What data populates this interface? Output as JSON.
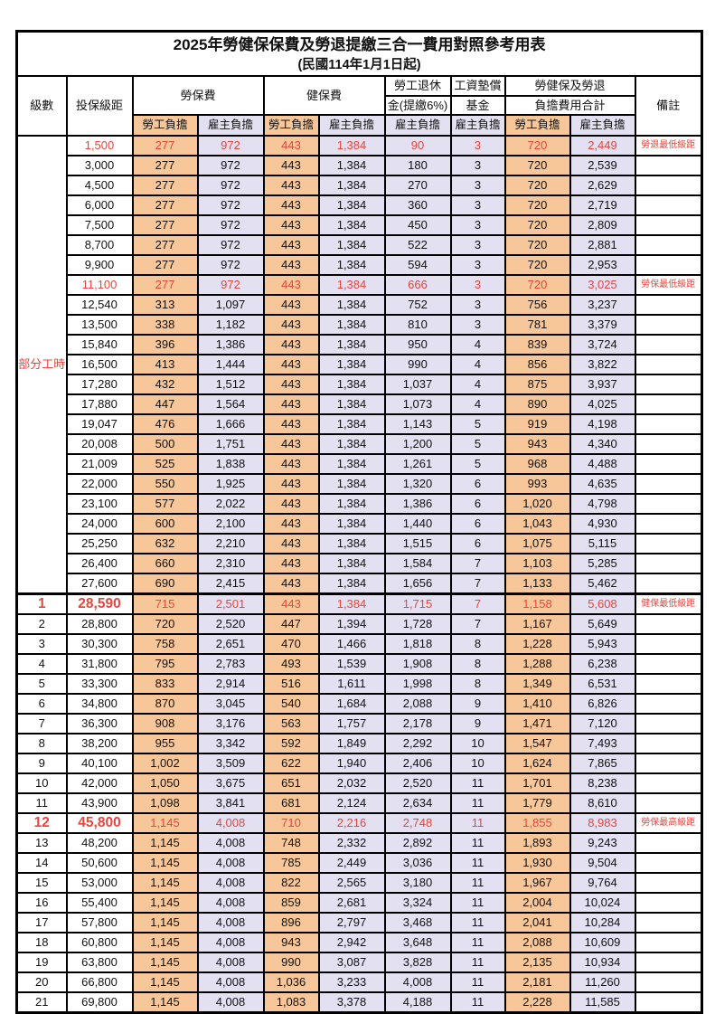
{
  "title": "2025年勞健保保費及勞退提繳三合一費用對照參考用表",
  "subtitle": "(民國114年1月1日起)",
  "columns": {
    "level": "級數",
    "bracket": "投保級距",
    "labor": "勞保費",
    "health": "健保費",
    "pension_line1": "勞工退休",
    "pension_line2": "金(提繳6%)",
    "fund_line1": "工資墊償",
    "fund_line2": "基金",
    "total_line1": "勞健保及勞退",
    "total_line2": "負擔費用合計",
    "remark": "備註",
    "employee": "勞工負擔",
    "employer": "雇主負擔"
  },
  "group_label": "部分工時",
  "colors": {
    "employee_bg": "#f7c79a",
    "employer_bg": "#e2e0f1",
    "highlight_text": "#e8453c",
    "remark_text": "#f26b63",
    "grid": "#000000"
  },
  "rows": [
    {
      "level": "",
      "bracket": "1,500",
      "labor_e": "277",
      "labor_r": "972",
      "health_e": "443",
      "health_r": "1,384",
      "pension_r": "90",
      "fund_r": "3",
      "total_e": "720",
      "total_r": "2,449",
      "remark": "勞退最低級距",
      "red": true,
      "big": false
    },
    {
      "level": "",
      "bracket": "3,000",
      "labor_e": "277",
      "labor_r": "972",
      "health_e": "443",
      "health_r": "1,384",
      "pension_r": "180",
      "fund_r": "3",
      "total_e": "720",
      "total_r": "2,539",
      "remark": "",
      "red": false,
      "big": false
    },
    {
      "level": "",
      "bracket": "4,500",
      "labor_e": "277",
      "labor_r": "972",
      "health_e": "443",
      "health_r": "1,384",
      "pension_r": "270",
      "fund_r": "3",
      "total_e": "720",
      "total_r": "2,629",
      "remark": "",
      "red": false,
      "big": false
    },
    {
      "level": "",
      "bracket": "6,000",
      "labor_e": "277",
      "labor_r": "972",
      "health_e": "443",
      "health_r": "1,384",
      "pension_r": "360",
      "fund_r": "3",
      "total_e": "720",
      "total_r": "2,719",
      "remark": "",
      "red": false,
      "big": false
    },
    {
      "level": "",
      "bracket": "7,500",
      "labor_e": "277",
      "labor_r": "972",
      "health_e": "443",
      "health_r": "1,384",
      "pension_r": "450",
      "fund_r": "3",
      "total_e": "720",
      "total_r": "2,809",
      "remark": "",
      "red": false,
      "big": false
    },
    {
      "level": "",
      "bracket": "8,700",
      "labor_e": "277",
      "labor_r": "972",
      "health_e": "443",
      "health_r": "1,384",
      "pension_r": "522",
      "fund_r": "3",
      "total_e": "720",
      "total_r": "2,881",
      "remark": "",
      "red": false,
      "big": false
    },
    {
      "level": "",
      "bracket": "9,900",
      "labor_e": "277",
      "labor_r": "972",
      "health_e": "443",
      "health_r": "1,384",
      "pension_r": "594",
      "fund_r": "3",
      "total_e": "720",
      "total_r": "2,953",
      "remark": "",
      "red": false,
      "big": false
    },
    {
      "level": "",
      "bracket": "11,100",
      "labor_e": "277",
      "labor_r": "972",
      "health_e": "443",
      "health_r": "1,384",
      "pension_r": "666",
      "fund_r": "3",
      "total_e": "720",
      "total_r": "3,025",
      "remark": "勞保最低級距",
      "red": true,
      "big": false
    },
    {
      "level": "",
      "bracket": "12,540",
      "labor_e": "313",
      "labor_r": "1,097",
      "health_e": "443",
      "health_r": "1,384",
      "pension_r": "752",
      "fund_r": "3",
      "total_e": "756",
      "total_r": "3,237",
      "remark": "",
      "red": false,
      "big": false
    },
    {
      "level": "",
      "bracket": "13,500",
      "labor_e": "338",
      "labor_r": "1,182",
      "health_e": "443",
      "health_r": "1,384",
      "pension_r": "810",
      "fund_r": "3",
      "total_e": "781",
      "total_r": "3,379",
      "remark": "",
      "red": false,
      "big": false
    },
    {
      "level": "",
      "bracket": "15,840",
      "labor_e": "396",
      "labor_r": "1,386",
      "health_e": "443",
      "health_r": "1,384",
      "pension_r": "950",
      "fund_r": "4",
      "total_e": "839",
      "total_r": "3,724",
      "remark": "",
      "red": false,
      "big": false
    },
    {
      "level": "",
      "bracket": "16,500",
      "labor_e": "413",
      "labor_r": "1,444",
      "health_e": "443",
      "health_r": "1,384",
      "pension_r": "990",
      "fund_r": "4",
      "total_e": "856",
      "total_r": "3,822",
      "remark": "",
      "red": false,
      "big": false
    },
    {
      "level": "",
      "bracket": "17,280",
      "labor_e": "432",
      "labor_r": "1,512",
      "health_e": "443",
      "health_r": "1,384",
      "pension_r": "1,037",
      "fund_r": "4",
      "total_e": "875",
      "total_r": "3,937",
      "remark": "",
      "red": false,
      "big": false
    },
    {
      "level": "",
      "bracket": "17,880",
      "labor_e": "447",
      "labor_r": "1,564",
      "health_e": "443",
      "health_r": "1,384",
      "pension_r": "1,073",
      "fund_r": "4",
      "total_e": "890",
      "total_r": "4,025",
      "remark": "",
      "red": false,
      "big": false
    },
    {
      "level": "",
      "bracket": "19,047",
      "labor_e": "476",
      "labor_r": "1,666",
      "health_e": "443",
      "health_r": "1,384",
      "pension_r": "1,143",
      "fund_r": "5",
      "total_e": "919",
      "total_r": "4,198",
      "remark": "",
      "red": false,
      "big": false
    },
    {
      "level": "",
      "bracket": "20,008",
      "labor_e": "500",
      "labor_r": "1,751",
      "health_e": "443",
      "health_r": "1,384",
      "pension_r": "1,200",
      "fund_r": "5",
      "total_e": "943",
      "total_r": "4,340",
      "remark": "",
      "red": false,
      "big": false
    },
    {
      "level": "",
      "bracket": "21,009",
      "labor_e": "525",
      "labor_r": "1,838",
      "health_e": "443",
      "health_r": "1,384",
      "pension_r": "1,261",
      "fund_r": "5",
      "total_e": "968",
      "total_r": "4,488",
      "remark": "",
      "red": false,
      "big": false
    },
    {
      "level": "",
      "bracket": "22,000",
      "labor_e": "550",
      "labor_r": "1,925",
      "health_e": "443",
      "health_r": "1,384",
      "pension_r": "1,320",
      "fund_r": "6",
      "total_e": "993",
      "total_r": "4,635",
      "remark": "",
      "red": false,
      "big": false
    },
    {
      "level": "",
      "bracket": "23,100",
      "labor_e": "577",
      "labor_r": "2,022",
      "health_e": "443",
      "health_r": "1,384",
      "pension_r": "1,386",
      "fund_r": "6",
      "total_e": "1,020",
      "total_r": "4,798",
      "remark": "",
      "red": false,
      "big": false
    },
    {
      "level": "",
      "bracket": "24,000",
      "labor_e": "600",
      "labor_r": "2,100",
      "health_e": "443",
      "health_r": "1,384",
      "pension_r": "1,440",
      "fund_r": "6",
      "total_e": "1,043",
      "total_r": "4,930",
      "remark": "",
      "red": false,
      "big": false
    },
    {
      "level": "",
      "bracket": "25,250",
      "labor_e": "632",
      "labor_r": "2,210",
      "health_e": "443",
      "health_r": "1,384",
      "pension_r": "1,515",
      "fund_r": "6",
      "total_e": "1,075",
      "total_r": "5,115",
      "remark": "",
      "red": false,
      "big": false
    },
    {
      "level": "",
      "bracket": "26,400",
      "labor_e": "660",
      "labor_r": "2,310",
      "health_e": "443",
      "health_r": "1,384",
      "pension_r": "1,584",
      "fund_r": "7",
      "total_e": "1,103",
      "total_r": "5,285",
      "remark": "",
      "red": false,
      "big": false
    },
    {
      "level": "",
      "bracket": "27,600",
      "labor_e": "690",
      "labor_r": "2,415",
      "health_e": "443",
      "health_r": "1,384",
      "pension_r": "1,656",
      "fund_r": "7",
      "total_e": "1,133",
      "total_r": "5,462",
      "remark": "",
      "red": false,
      "big": false
    },
    {
      "level": "1",
      "bracket": "28,590",
      "labor_e": "715",
      "labor_r": "2,501",
      "health_e": "443",
      "health_r": "1,384",
      "pension_r": "1,715",
      "fund_r": "7",
      "total_e": "1,158",
      "total_r": "5,608",
      "remark": "健保最低級距",
      "red": true,
      "big": true
    },
    {
      "level": "2",
      "bracket": "28,800",
      "labor_e": "720",
      "labor_r": "2,520",
      "health_e": "447",
      "health_r": "1,394",
      "pension_r": "1,728",
      "fund_r": "7",
      "total_e": "1,167",
      "total_r": "5,649",
      "remark": "",
      "red": false,
      "big": false
    },
    {
      "level": "3",
      "bracket": "30,300",
      "labor_e": "758",
      "labor_r": "2,651",
      "health_e": "470",
      "health_r": "1,466",
      "pension_r": "1,818",
      "fund_r": "8",
      "total_e": "1,228",
      "total_r": "5,943",
      "remark": "",
      "red": false,
      "big": false
    },
    {
      "level": "4",
      "bracket": "31,800",
      "labor_e": "795",
      "labor_r": "2,783",
      "health_e": "493",
      "health_r": "1,539",
      "pension_r": "1,908",
      "fund_r": "8",
      "total_e": "1,288",
      "total_r": "6,238",
      "remark": "",
      "red": false,
      "big": false
    },
    {
      "level": "5",
      "bracket": "33,300",
      "labor_e": "833",
      "labor_r": "2,914",
      "health_e": "516",
      "health_r": "1,611",
      "pension_r": "1,998",
      "fund_r": "8",
      "total_e": "1,349",
      "total_r": "6,531",
      "remark": "",
      "red": false,
      "big": false
    },
    {
      "level": "6",
      "bracket": "34,800",
      "labor_e": "870",
      "labor_r": "3,045",
      "health_e": "540",
      "health_r": "1,684",
      "pension_r": "2,088",
      "fund_r": "9",
      "total_e": "1,410",
      "total_r": "6,826",
      "remark": "",
      "red": false,
      "big": false
    },
    {
      "level": "7",
      "bracket": "36,300",
      "labor_e": "908",
      "labor_r": "3,176",
      "health_e": "563",
      "health_r": "1,757",
      "pension_r": "2,178",
      "fund_r": "9",
      "total_e": "1,471",
      "total_r": "7,120",
      "remark": "",
      "red": false,
      "big": false
    },
    {
      "level": "8",
      "bracket": "38,200",
      "labor_e": "955",
      "labor_r": "3,342",
      "health_e": "592",
      "health_r": "1,849",
      "pension_r": "2,292",
      "fund_r": "10",
      "total_e": "1,547",
      "total_r": "7,493",
      "remark": "",
      "red": false,
      "big": false
    },
    {
      "level": "9",
      "bracket": "40,100",
      "labor_e": "1,002",
      "labor_r": "3,509",
      "health_e": "622",
      "health_r": "1,940",
      "pension_r": "2,406",
      "fund_r": "10",
      "total_e": "1,624",
      "total_r": "7,865",
      "remark": "",
      "red": false,
      "big": false
    },
    {
      "level": "10",
      "bracket": "42,000",
      "labor_e": "1,050",
      "labor_r": "3,675",
      "health_e": "651",
      "health_r": "2,032",
      "pension_r": "2,520",
      "fund_r": "11",
      "total_e": "1,701",
      "total_r": "8,238",
      "remark": "",
      "red": false,
      "big": false
    },
    {
      "level": "11",
      "bracket": "43,900",
      "labor_e": "1,098",
      "labor_r": "3,841",
      "health_e": "681",
      "health_r": "2,124",
      "pension_r": "2,634",
      "fund_r": "11",
      "total_e": "1,779",
      "total_r": "8,610",
      "remark": "",
      "red": false,
      "big": false
    },
    {
      "level": "12",
      "bracket": "45,800",
      "labor_e": "1,145",
      "labor_r": "4,008",
      "health_e": "710",
      "health_r": "2,216",
      "pension_r": "2,748",
      "fund_r": "11",
      "total_e": "1,855",
      "total_r": "8,983",
      "remark": "勞保最高級距",
      "red": true,
      "big": true
    },
    {
      "level": "13",
      "bracket": "48,200",
      "labor_e": "1,145",
      "labor_r": "4,008",
      "health_e": "748",
      "health_r": "2,332",
      "pension_r": "2,892",
      "fund_r": "11",
      "total_e": "1,893",
      "total_r": "9,243",
      "remark": "",
      "red": false,
      "big": false
    },
    {
      "level": "14",
      "bracket": "50,600",
      "labor_e": "1,145",
      "labor_r": "4,008",
      "health_e": "785",
      "health_r": "2,449",
      "pension_r": "3,036",
      "fund_r": "11",
      "total_e": "1,930",
      "total_r": "9,504",
      "remark": "",
      "red": false,
      "big": false
    },
    {
      "level": "15",
      "bracket": "53,000",
      "labor_e": "1,145",
      "labor_r": "4,008",
      "health_e": "822",
      "health_r": "2,565",
      "pension_r": "3,180",
      "fund_r": "11",
      "total_e": "1,967",
      "total_r": "9,764",
      "remark": "",
      "red": false,
      "big": false
    },
    {
      "level": "16",
      "bracket": "55,400",
      "labor_e": "1,145",
      "labor_r": "4,008",
      "health_e": "859",
      "health_r": "2,681",
      "pension_r": "3,324",
      "fund_r": "11",
      "total_e": "2,004",
      "total_r": "10,024",
      "remark": "",
      "red": false,
      "big": false
    },
    {
      "level": "17",
      "bracket": "57,800",
      "labor_e": "1,145",
      "labor_r": "4,008",
      "health_e": "896",
      "health_r": "2,797",
      "pension_r": "3,468",
      "fund_r": "11",
      "total_e": "2,041",
      "total_r": "10,284",
      "remark": "",
      "red": false,
      "big": false
    },
    {
      "level": "18",
      "bracket": "60,800",
      "labor_e": "1,145",
      "labor_r": "4,008",
      "health_e": "943",
      "health_r": "2,942",
      "pension_r": "3,648",
      "fund_r": "11",
      "total_e": "2,088",
      "total_r": "10,609",
      "remark": "",
      "red": false,
      "big": false
    },
    {
      "level": "19",
      "bracket": "63,800",
      "labor_e": "1,145",
      "labor_r": "4,008",
      "health_e": "990",
      "health_r": "3,087",
      "pension_r": "3,828",
      "fund_r": "11",
      "total_e": "2,135",
      "total_r": "10,934",
      "remark": "",
      "red": false,
      "big": false
    },
    {
      "level": "20",
      "bracket": "66,800",
      "labor_e": "1,145",
      "labor_r": "4,008",
      "health_e": "1,036",
      "health_r": "3,233",
      "pension_r": "4,008",
      "fund_r": "11",
      "total_e": "2,181",
      "total_r": "11,260",
      "remark": "",
      "red": false,
      "big": false
    },
    {
      "level": "21",
      "bracket": "69,800",
      "labor_e": "1,145",
      "labor_r": "4,008",
      "health_e": "1,083",
      "health_r": "3,378",
      "pension_r": "4,188",
      "fund_r": "11",
      "total_e": "2,228",
      "total_r": "11,585",
      "remark": "",
      "red": false,
      "big": false
    }
  ]
}
